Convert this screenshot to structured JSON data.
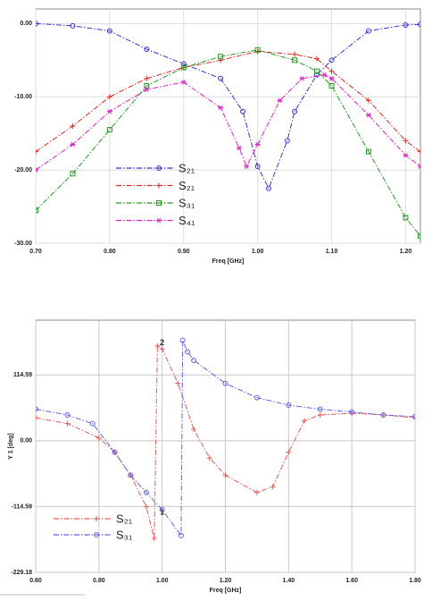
{
  "chart_data": [
    {
      "type": "line",
      "x_label": "Freq [GHz]",
      "xlim": [
        0.7,
        1.22
      ],
      "ylim": [
        -30,
        2
      ],
      "xticks": [
        {
          "value": 0.7,
          "label": "0.70"
        },
        {
          "value": 0.8,
          "label": "0.80"
        },
        {
          "value": 0.9,
          "label": "0.90"
        },
        {
          "value": 1.0,
          "label": "1.00"
        },
        {
          "value": 1.1,
          "label": "1.10"
        },
        {
          "value": 1.2,
          "label": "1.20"
        }
      ],
      "yticks": [
        {
          "value": 0,
          "label": "0.00"
        },
        {
          "value": -10,
          "label": "-10.00"
        },
        {
          "value": -20,
          "label": "-20.00"
        },
        {
          "value": -30,
          "label": "-30.00"
        }
      ],
      "grid": true,
      "series": [
        {
          "name": "S₂₁",
          "color": "#3434d0",
          "marker": "circle",
          "x": [
            0.7,
            0.75,
            0.8,
            0.85,
            0.9,
            0.95,
            0.98,
            1.0,
            1.015,
            1.04,
            1.05,
            1.08,
            1.1,
            1.15,
            1.2,
            1.22
          ],
          "values": [
            0,
            -0.3,
            -1,
            -3.5,
            -5.5,
            -7.5,
            -12,
            -19.5,
            -22.5,
            -16,
            -12,
            -7,
            -5,
            -1,
            -0.2,
            -0.1
          ]
        },
        {
          "name": "S₂₁",
          "color": "#e02828",
          "marker": "plus",
          "x": [
            0.7,
            0.75,
            0.8,
            0.85,
            0.9,
            0.95,
            1.0,
            1.05,
            1.08,
            1.1,
            1.15,
            1.2,
            1.22
          ],
          "values": [
            -17.5,
            -14,
            -10,
            -7.5,
            -6,
            -5,
            -3.8,
            -4.2,
            -4.8,
            -6.5,
            -10.5,
            -16,
            -17.5
          ]
        },
        {
          "name": "S₃₁",
          "color": "#229a22",
          "marker": "square",
          "x": [
            0.7,
            0.75,
            0.8,
            0.85,
            0.9,
            0.95,
            1.0,
            1.05,
            1.08,
            1.1,
            1.15,
            1.2,
            1.22
          ],
          "values": [
            -25.5,
            -20.5,
            -14.5,
            -8.5,
            -6,
            -4.5,
            -3.6,
            -5,
            -6.5,
            -8.5,
            -17.5,
            -26.5,
            -29
          ]
        },
        {
          "name": "S₄₁",
          "color": "#e020c0",
          "marker": "asterisk",
          "x": [
            0.7,
            0.75,
            0.8,
            0.85,
            0.9,
            0.95,
            0.975,
            0.985,
            1.0,
            1.03,
            1.06,
            1.09,
            1.1,
            1.15,
            1.2,
            1.22
          ],
          "values": [
            -20,
            -16.5,
            -12,
            -9,
            -8,
            -11.5,
            -17,
            -19.5,
            -16.5,
            -10.5,
            -7.5,
            -7,
            -7.5,
            -12.5,
            -18,
            -19.5
          ]
        }
      ]
    },
    {
      "type": "line",
      "x_label": "Freq [GHz]",
      "y_label": "Y 1  [deg]",
      "xlim": [
        0.6,
        1.8
      ],
      "ylim": [
        -229.18,
        210
      ],
      "xticks": [
        {
          "value": 0.6,
          "label": "0.60"
        },
        {
          "value": 0.8,
          "label": "0.80"
        },
        {
          "value": 1.0,
          "label": "1.00"
        },
        {
          "value": 1.2,
          "label": "1.20"
        },
        {
          "value": 1.4,
          "label": "1.40"
        },
        {
          "value": 1.6,
          "label": "1.60"
        },
        {
          "value": 1.8,
          "label": "1.80"
        }
      ],
      "yticks": [
        {
          "value": 114.59,
          "label": "114.59"
        },
        {
          "value": 0,
          "label": "0.00"
        },
        {
          "value": -114.59,
          "label": "-114.59"
        },
        {
          "value": -229.18,
          "label": "-229.18"
        }
      ],
      "grid": true,
      "series": [
        {
          "name": "S₂₁",
          "color": "#e45a5a",
          "marker": "plus",
          "x": [
            0.6,
            0.7,
            0.8,
            0.85,
            0.9,
            0.95,
            0.975,
            0.985,
            1.0,
            1.05,
            1.1,
            1.15,
            1.2,
            1.3,
            1.35,
            1.4,
            1.45,
            1.5,
            1.6,
            1.7,
            1.8
          ],
          "values": [
            40,
            30,
            5,
            -20,
            -60,
            -115,
            -170,
            165,
            160,
            100,
            20,
            -30,
            -60,
            -90,
            -80,
            -20,
            35,
            45,
            48,
            45,
            40
          ]
        },
        {
          "name": "S₃₁",
          "color": "#6262e4",
          "marker": "circle",
          "x": [
            0.6,
            0.7,
            0.78,
            0.85,
            0.9,
            0.95,
            1.0,
            1.06,
            1.065,
            1.08,
            1.1,
            1.2,
            1.3,
            1.4,
            1.5,
            1.6,
            1.7,
            1.8
          ],
          "values": [
            55,
            45,
            30,
            -20,
            -60,
            -90,
            -120,
            -165,
            175,
            155,
            140,
            100,
            75,
            62,
            55,
            50,
            45,
            42
          ]
        }
      ],
      "annotations": [
        {
          "text": "2",
          "x": 1.0,
          "y": 170
        },
        {
          "text": "1",
          "x": 1.0,
          "y": -125
        }
      ]
    }
  ]
}
